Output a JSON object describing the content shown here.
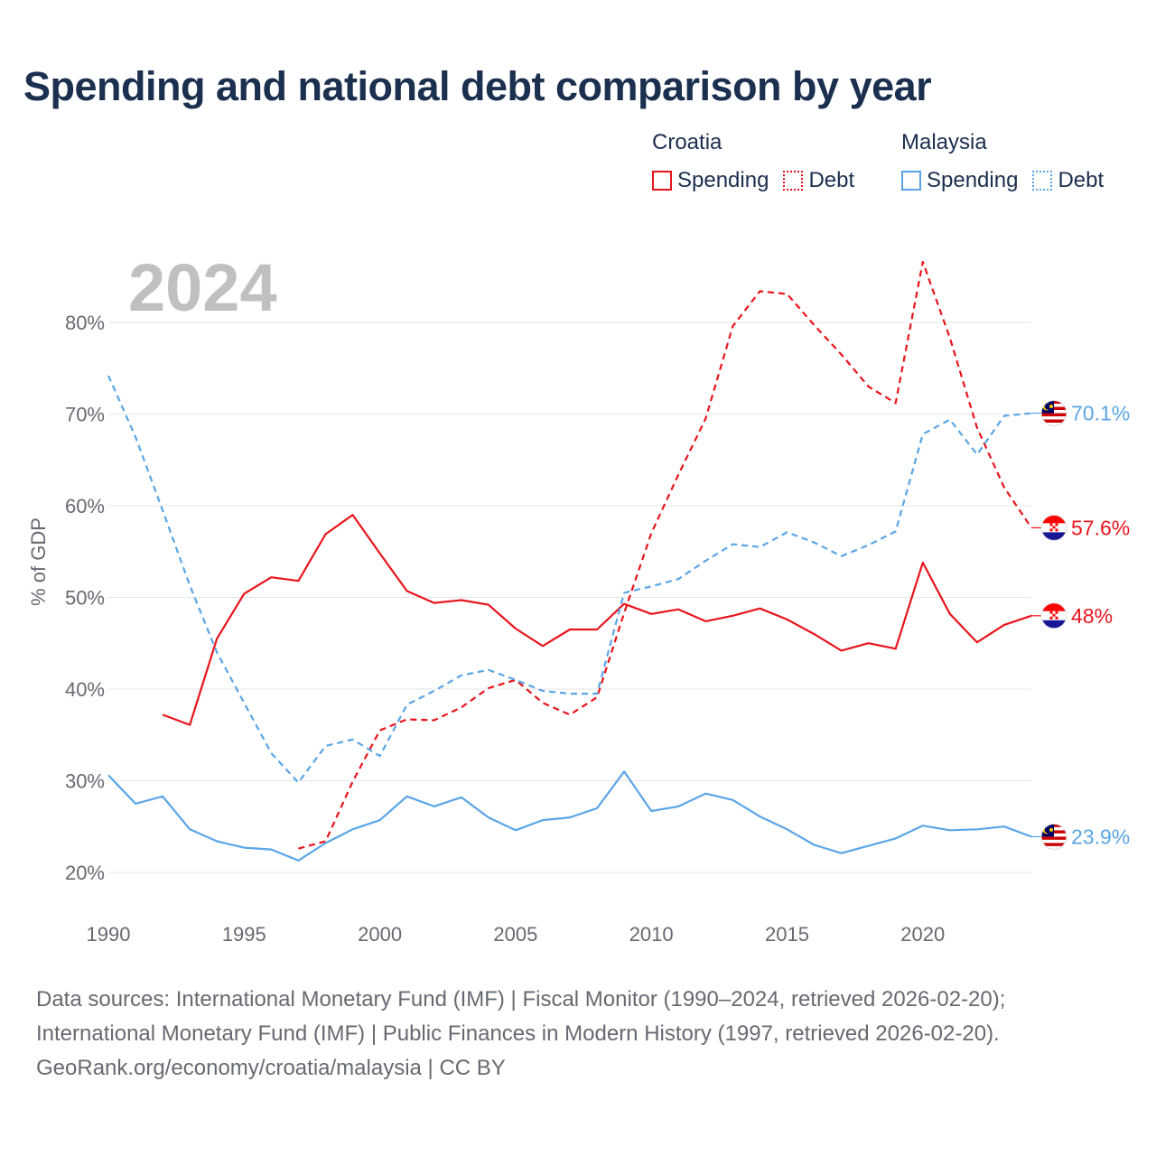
{
  "title": "Spending and national debt comparison by year",
  "legend": {
    "groups": [
      {
        "name": "Croatia",
        "color": "#e8141b",
        "items": [
          {
            "label": "Spending",
            "style": "solid"
          },
          {
            "label": "Debt",
            "style": "dotted"
          }
        ]
      },
      {
        "name": "Malaysia",
        "color": "#5aa5e6",
        "items": [
          {
            "label": "Spending",
            "style": "solid"
          },
          {
            "label": "Debt",
            "style": "dotted"
          }
        ]
      }
    ]
  },
  "source": {
    "line1": "Data sources: International Monetary Fund (IMF) | Fiscal Monitor (1990–2024, retrieved 2026-02-20);",
    "line2": "International Monetary Fund (IMF) | Public Finances in Modern History (1997, retrieved 2026-02-20).",
    "line3": "GeoRank.org/economy/croatia/malaysia | CC BY"
  },
  "chart_data": {
    "type": "line",
    "title": "Spending and national debt comparison by year",
    "year_label": "2024",
    "ylabel": "% of GDP",
    "xlabel": "",
    "xlim": [
      1990,
      2024
    ],
    "ylim": [
      20,
      86.6
    ],
    "x_ticks": [
      1990,
      1995,
      2000,
      2005,
      2010,
      2015,
      2020
    ],
    "y_ticks": [
      20,
      30,
      40,
      50,
      60,
      70,
      80
    ],
    "y_tick_labels": [
      "20%",
      "30%",
      "40%",
      "50%",
      "60%",
      "70%",
      "80%"
    ],
    "grid": true,
    "series": [
      {
        "name": "Croatia Spending",
        "country": "Croatia",
        "flag": "croatia",
        "dash": "solid",
        "color": "#e8141b",
        "end_label": "48%",
        "x": [
          1992,
          1993,
          1994,
          1995,
          1996,
          1997,
          1998,
          1999,
          2000,
          2001,
          2002,
          2003,
          2004,
          2005,
          2006,
          2007,
          2008,
          2009,
          2010,
          2011,
          2012,
          2013,
          2014,
          2015,
          2016,
          2017,
          2018,
          2019,
          2020,
          2021,
          2022,
          2023,
          2024
        ],
        "y": [
          37.2,
          36.1,
          45.5,
          50.4,
          52.2,
          51.8,
          56.9,
          59.0,
          54.8,
          50.7,
          49.4,
          49.7,
          49.2,
          46.6,
          44.7,
          46.5,
          46.5,
          49.3,
          48.2,
          48.7,
          47.4,
          48.0,
          48.8,
          47.6,
          46.0,
          44.2,
          45.0,
          44.4,
          53.8,
          48.2,
          45.1,
          47.0,
          48.0
        ]
      },
      {
        "name": "Croatia Debt",
        "country": "Croatia",
        "flag": "croatia",
        "dash": "dashed",
        "color": "#e8141b",
        "end_label": "57.6%",
        "x": [
          1997,
          1998,
          1999,
          2000,
          2001,
          2002,
          2003,
          2004,
          2005,
          2006,
          2007,
          2008,
          2009,
          2010,
          2011,
          2012,
          2013,
          2014,
          2015,
          2016,
          2017,
          2018,
          2019,
          2020,
          2021,
          2022,
          2023,
          2024
        ],
        "y": [
          22.6,
          23.4,
          29.9,
          35.5,
          36.7,
          36.6,
          38.0,
          40.1,
          41.0,
          38.5,
          37.2,
          39.1,
          48.3,
          57.0,
          63.4,
          69.5,
          79.6,
          83.4,
          83.1,
          79.7,
          76.5,
          73.0,
          71.2,
          86.6,
          78.3,
          68.5,
          62.0,
          57.6
        ]
      },
      {
        "name": "Malaysia Spending",
        "country": "Malaysia",
        "flag": "malaysia",
        "dash": "solid",
        "color": "#5aa5e6",
        "end_label": "23.9%",
        "x": [
          1990,
          1991,
          1992,
          1993,
          1994,
          1995,
          1996,
          1997,
          1998,
          1999,
          2000,
          2001,
          2002,
          2003,
          2004,
          2005,
          2006,
          2007,
          2008,
          2009,
          2010,
          2011,
          2012,
          2013,
          2014,
          2015,
          2016,
          2017,
          2018,
          2019,
          2020,
          2021,
          2022,
          2023,
          2024
        ],
        "y": [
          30.6,
          27.5,
          28.3,
          24.7,
          23.4,
          22.7,
          22.5,
          21.3,
          23.2,
          24.7,
          25.7,
          28.3,
          27.2,
          28.2,
          26.0,
          24.6,
          25.7,
          26.0,
          27.0,
          31.0,
          26.7,
          27.2,
          28.6,
          27.9,
          26.1,
          24.7,
          23.0,
          22.1,
          22.9,
          23.7,
          25.1,
          24.6,
          24.7,
          25.0,
          23.9
        ]
      },
      {
        "name": "Malaysia Debt",
        "country": "Malaysia",
        "flag": "malaysia",
        "dash": "dashed",
        "color": "#5aa5e6",
        "end_label": "70.1%",
        "x": [
          1990,
          1991,
          1992,
          1993,
          1994,
          1995,
          1996,
          1997,
          1998,
          1999,
          2000,
          2001,
          2002,
          2003,
          2004,
          2005,
          2006,
          2007,
          2008,
          2009,
          2010,
          2011,
          2012,
          2013,
          2014,
          2015,
          2016,
          2017,
          2018,
          2019,
          2020,
          2021,
          2022,
          2023,
          2024
        ],
        "y": [
          74.2,
          67.5,
          59.5,
          51.3,
          44.0,
          38.5,
          33.0,
          29.8,
          33.8,
          34.5,
          32.7,
          38.3,
          39.8,
          41.5,
          42.1,
          41.0,
          39.8,
          39.5,
          39.5,
          50.5,
          51.2,
          52.0,
          54.0,
          55.8,
          55.5,
          57.1,
          56.0,
          54.5,
          55.7,
          57.2,
          67.8,
          69.4,
          65.6,
          69.8,
          70.1
        ]
      }
    ]
  }
}
